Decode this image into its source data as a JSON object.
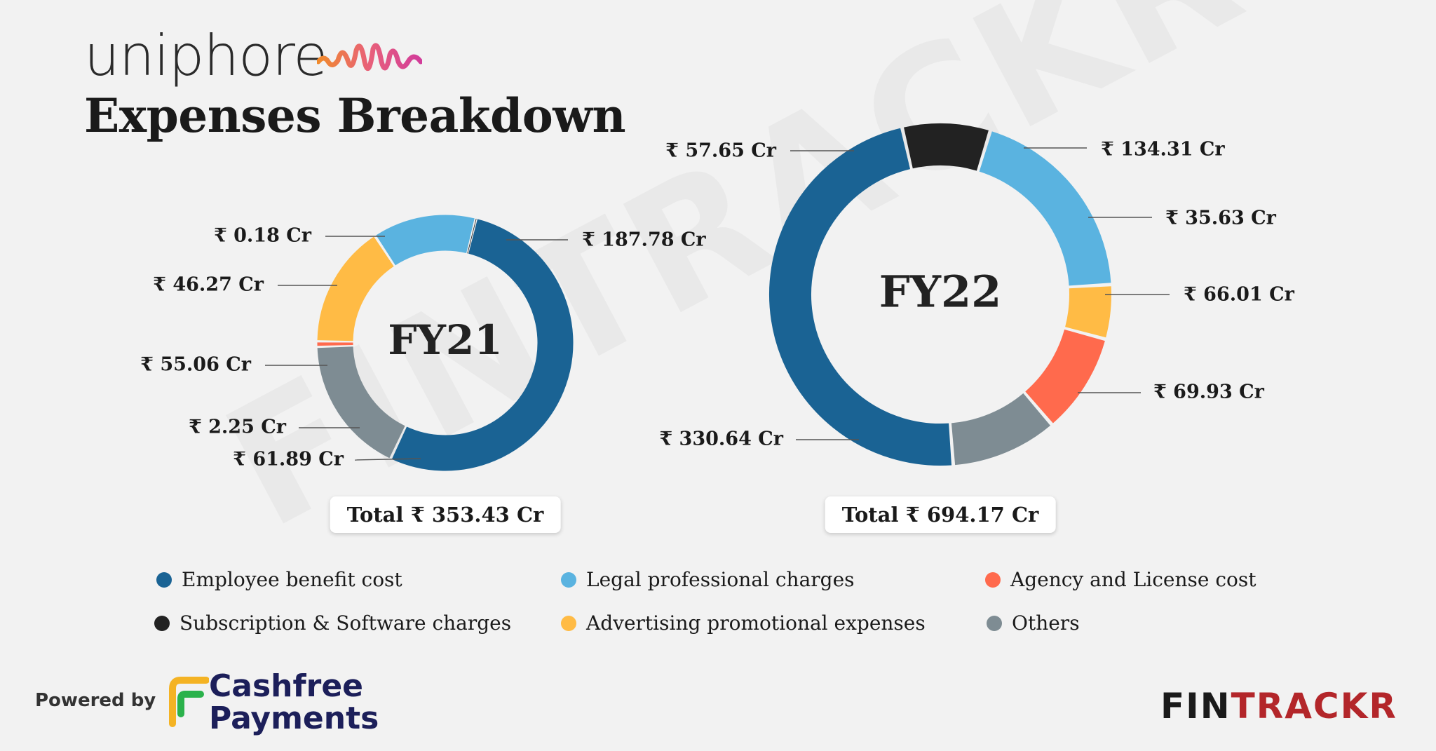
{
  "brand": {
    "name": "uniphore"
  },
  "title": "Expenses Breakdown",
  "watermark": "FINTRACKR",
  "footer": {
    "powered_by": "Powered by",
    "cashfree_line1": "Cashfree",
    "cashfree_line2": "Payments",
    "fintrackr_part1": "FIN",
    "fintrackr_part2": "TRACKR"
  },
  "colors": {
    "employee": "#1a6394",
    "legal": "#5ab3e0",
    "agency": "#ff6a4d",
    "subscription": "#222222",
    "advertising": "#ffbb45",
    "others": "#7e8c93"
  },
  "chart_data": [
    {
      "type": "donut",
      "title": "FY21",
      "total_label": "Total ₹ 353.43 Cr",
      "slices": [
        {
          "category": "Employee benefit cost",
          "key": "employee",
          "value": 187.78,
          "label": "₹ 187.78 Cr"
        },
        {
          "category": "Others",
          "key": "others",
          "value": 61.89,
          "label": "₹ 61.89 Cr"
        },
        {
          "category": "Agency and License cost",
          "key": "agency",
          "value": 2.25,
          "label": "₹ 2.25 Cr"
        },
        {
          "category": "Advertising promotional expenses",
          "key": "advertising",
          "value": 55.06,
          "label": "₹ 55.06 Cr"
        },
        {
          "category": "Legal professional charges",
          "key": "legal",
          "value": 46.27,
          "label": "₹ 46.27 Cr"
        },
        {
          "category": "Subscription & Software charges",
          "key": "subscription",
          "value": 0.18,
          "label": "₹ 0.18 Cr"
        }
      ]
    },
    {
      "type": "donut",
      "title": "FY22",
      "total_label": "Total ₹ 694.17 Cr",
      "slices": [
        {
          "category": "Legal professional charges",
          "key": "legal",
          "value": 134.31,
          "label": "₹ 134.31 Cr"
        },
        {
          "category": "Advertising promotional expenses",
          "key": "advertising",
          "value": 35.63,
          "label": "₹ 35.63 Cr"
        },
        {
          "category": "Agency and License cost",
          "key": "agency",
          "value": 66.01,
          "label": "₹ 66.01 Cr"
        },
        {
          "category": "Others",
          "key": "others",
          "value": 69.93,
          "label": "₹ 69.93 Cr"
        },
        {
          "category": "Employee benefit cost",
          "key": "employee",
          "value": 330.64,
          "label": "₹ 330.64 Cr"
        },
        {
          "category": "Subscription & Software charges",
          "key": "subscription",
          "value": 57.65,
          "label": "₹ 57.65 Cr"
        }
      ]
    }
  ],
  "legend": [
    {
      "label": "Employee benefit cost",
      "key": "employee"
    },
    {
      "label": "Legal professional charges",
      "key": "legal"
    },
    {
      "label": "Agency and License cost",
      "key": "agency"
    },
    {
      "label": "Subscription & Software charges",
      "key": "subscription"
    },
    {
      "label": "Advertising promotional expenses",
      "key": "advertising"
    },
    {
      "label": "Others",
      "key": "others"
    }
  ]
}
